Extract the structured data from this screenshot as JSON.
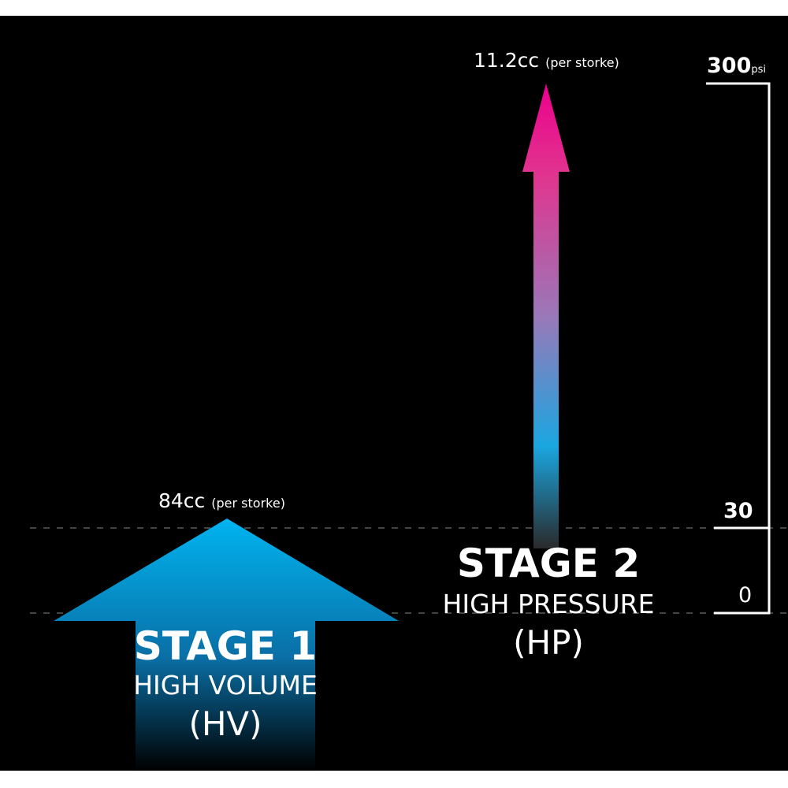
{
  "stage1": {
    "title": "STAGE 1",
    "subtitle": "HIGH VOLUME",
    "abbr": "(HV)",
    "volume": "84cc",
    "volume_note": "(per storke)"
  },
  "stage2": {
    "title": "STAGE 2",
    "subtitle": "HIGH PRESSURE",
    "abbr": "(HP)",
    "volume": "11.2cc",
    "volume_note": "(per storke)"
  },
  "scale": {
    "max_value": "300",
    "unit": "psi",
    "mid_value": "30",
    "min_value": "0"
  },
  "colors": {
    "background": "#000000",
    "stage1_arrow": "#00aeef",
    "stage2_arrow_top": "#ec008c",
    "stage2_arrow_mid": "#1aa6e0",
    "text": "#ffffff"
  }
}
